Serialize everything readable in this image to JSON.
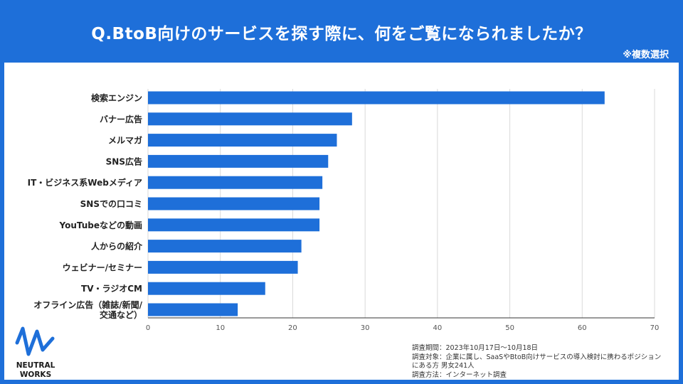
{
  "header": {
    "title": "Q.BtoB向けのサービスを探す際に、何をご覧になられましたか？",
    "note": "※複数選択"
  },
  "brand": {
    "logo_line1": "NEUTRAL",
    "logo_line2": "WORKS"
  },
  "footnote": {
    "line1": "調査期間：2023年10月17日〜10月18日",
    "line2": "調査対象：企業に属し、SaaSやBtoB向けサービスの導入検討に携わるポジション",
    "line3": "にある方  男女241人",
    "line4": "調査方法：インターネット調査"
  },
  "colors": {
    "accent": "#1e6fd9",
    "bar": "#1e6fd9",
    "grid": "#d9d9d9"
  },
  "chart_data": {
    "type": "bar",
    "orientation": "horizontal",
    "categories": [
      "検索エンジン",
      "バナー広告",
      "メルマガ",
      "SNS広告",
      "IT・ビジネス系Webメディア",
      "SNSでの口コミ",
      "YouTubeなどの動画",
      "人からの紹介",
      "ウェビナー/セミナー",
      "TV・ラジオCM",
      "オフライン広告（雑誌/新聞/交通など）"
    ],
    "values": [
      63.1,
      28.2,
      26.1,
      24.9,
      24.1,
      23.7,
      23.7,
      21.2,
      20.7,
      16.2,
      12.4
    ],
    "xlim": [
      0,
      70
    ],
    "xticks": [
      0,
      10,
      20,
      30,
      40,
      50,
      60,
      70
    ],
    "grid": true,
    "legend": "none"
  }
}
